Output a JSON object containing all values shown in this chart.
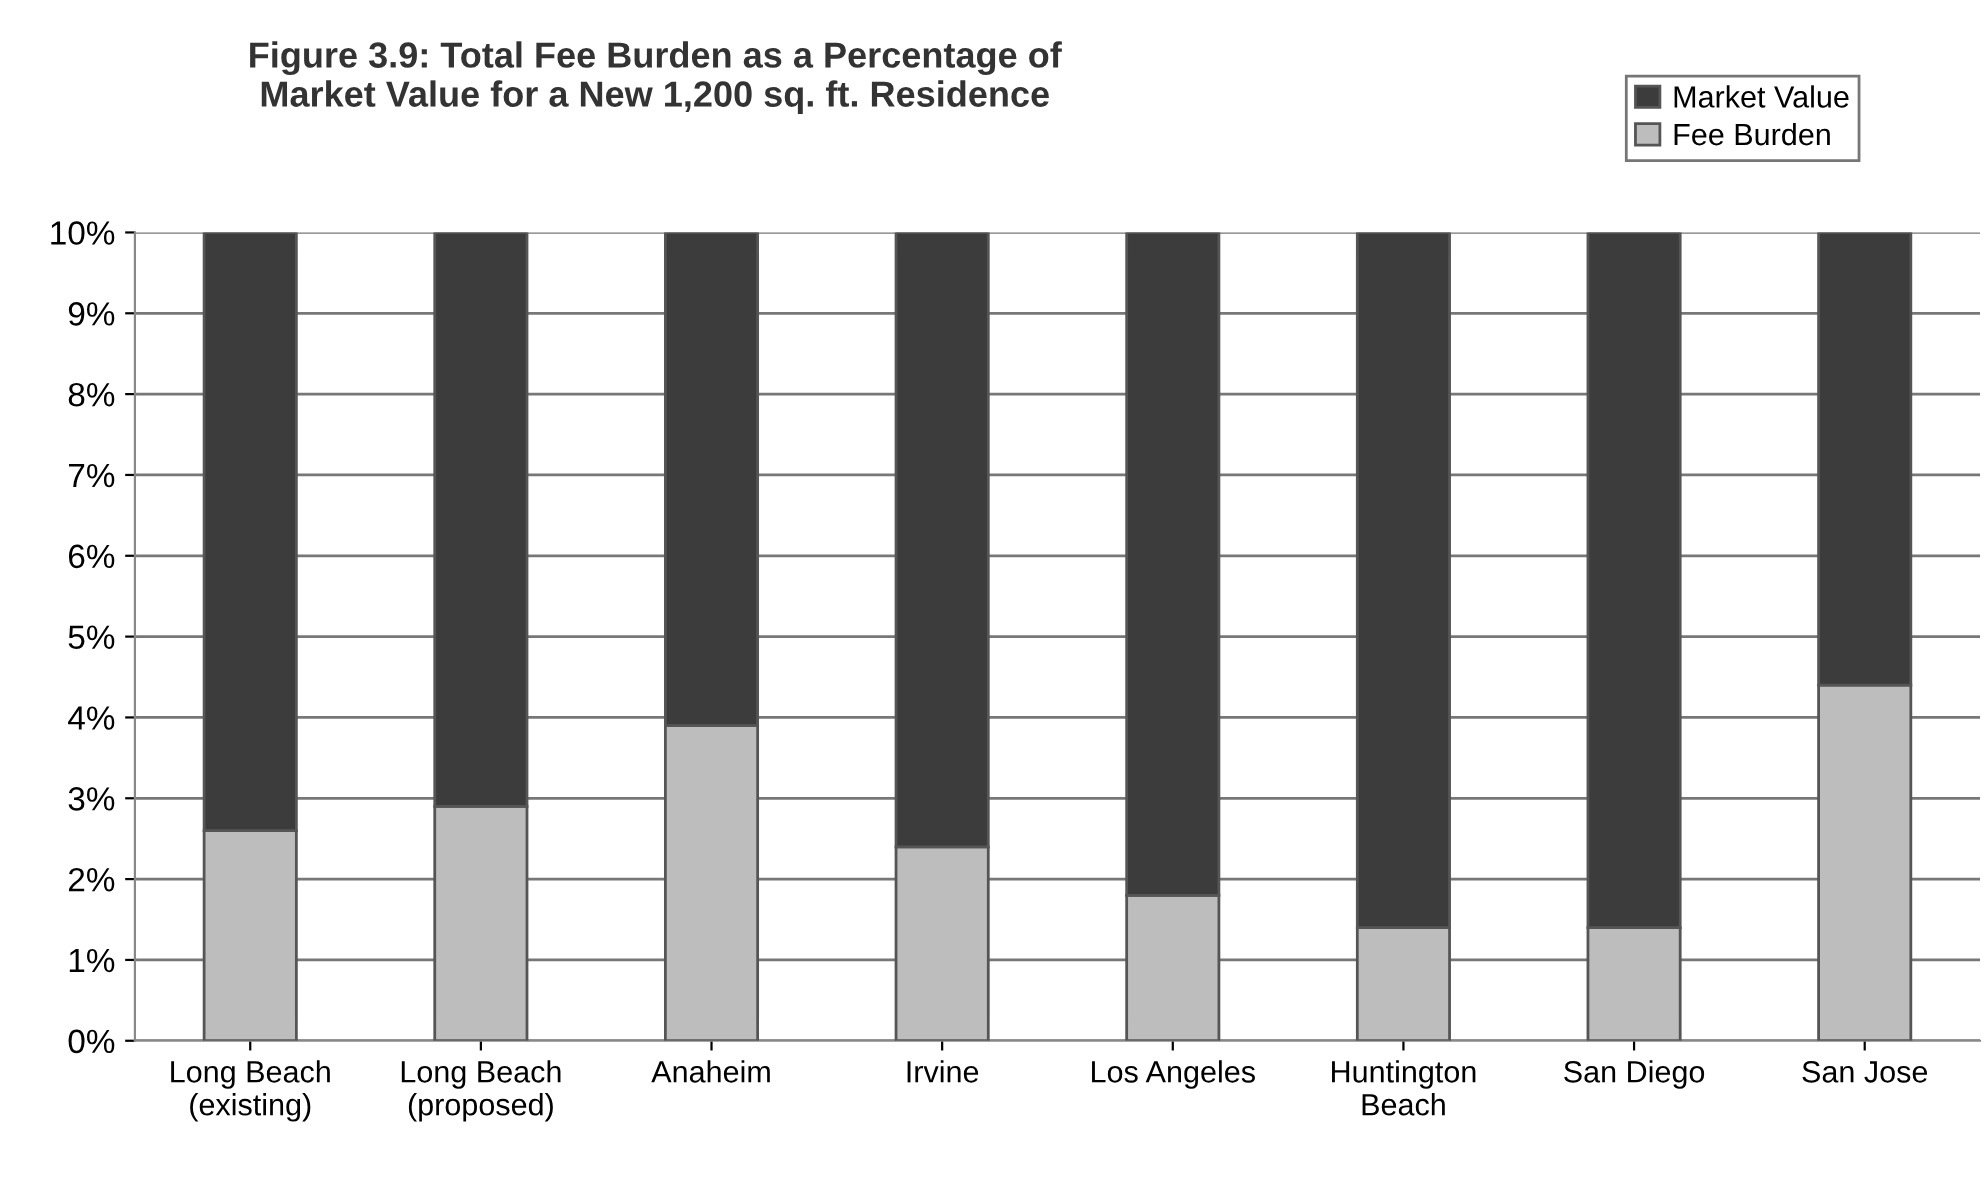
{
  "chart_data": {
    "type": "bar",
    "title": "Figure 3.9: Total Fee Burden as a Percentage of\nMarket Value for a New 1,200 sq. ft. Residence",
    "categories": [
      "Long Beach\n(existing)",
      "Long Beach\n(proposed)",
      "Anaheim",
      "Irvine",
      "Los Angeles",
      "Huntington\nBeach",
      "San Diego",
      "San Jose"
    ],
    "stacked": true,
    "series": [
      {
        "name": "Fee Burden",
        "color": "#bdbdbd",
        "values": [
          2.6,
          2.9,
          3.9,
          2.4,
          1.8,
          1.4,
          1.4,
          4.4
        ]
      },
      {
        "name": "Market Value",
        "color": "#3c3c3c",
        "values": [
          7.4,
          7.1,
          6.1,
          7.6,
          8.2,
          8.6,
          8.6,
          5.6
        ]
      }
    ],
    "ylim": [
      0,
      10
    ],
    "yticks": [
      {
        "value": 0,
        "label": "0%"
      },
      {
        "value": 1,
        "label": "1%"
      },
      {
        "value": 2,
        "label": "2%"
      },
      {
        "value": 3,
        "label": "3%"
      },
      {
        "value": 4,
        "label": "4%"
      },
      {
        "value": 5,
        "label": "5%"
      },
      {
        "value": 6,
        "label": "6%"
      },
      {
        "value": 7,
        "label": "7%"
      },
      {
        "value": 8,
        "label": "8%"
      },
      {
        "value": 9,
        "label": "9%"
      },
      {
        "value": 10,
        "label": "10%"
      }
    ],
    "grid": "y",
    "legend": "top right"
  }
}
